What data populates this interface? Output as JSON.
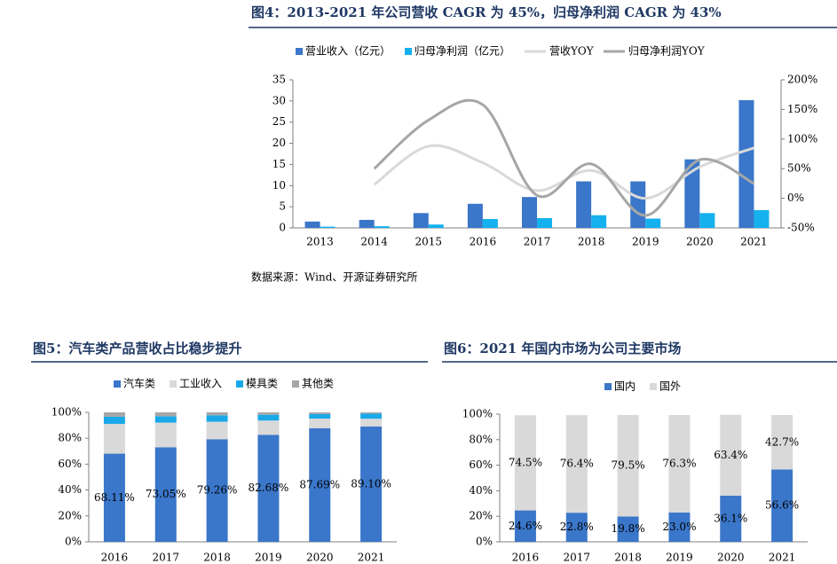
{
  "chart_data": [
    {
      "type": "bar",
      "title": "图4：2013-2021 年公司营收 CAGR 为 45%，归母净利润 CAGR 为 43%",
      "source": "数据来源：Wind、开源证券研究所",
      "categories": [
        "2013",
        "2014",
        "2015",
        "2016",
        "2017",
        "2018",
        "2019",
        "2020",
        "2021"
      ],
      "series": [
        {
          "name": "营业收入（亿元）",
          "color": "#3a76c9",
          "type": "bar",
          "values": [
            1.5,
            1.9,
            3.5,
            5.7,
            7.3,
            11,
            11,
            16.2,
            30.2
          ]
        },
        {
          "name": "归母净利润（亿元）",
          "color": "#14b1ee",
          "type": "bar",
          "values": [
            0.3,
            0.4,
            0.8,
            2.1,
            2.3,
            3.0,
            2.2,
            3.5,
            4.2
          ]
        },
        {
          "name": "营收YOY",
          "color": "#d9d9d9",
          "type": "line",
          "axis": "y2",
          "values": [
            null,
            23,
            88,
            60,
            13,
            47,
            0,
            53,
            85
          ]
        },
        {
          "name": "归母净利润YOY",
          "color": "#a6a6a6",
          "type": "line",
          "axis": "y2",
          "values": [
            null,
            50,
            132,
            158,
            5,
            58,
            -29,
            65,
            25
          ]
        }
      ],
      "ylim": [
        0,
        35
      ],
      "yticks": [
        0,
        5,
        10,
        15,
        20,
        25,
        30,
        35
      ],
      "y2lim": [
        -50,
        200
      ],
      "y2ticks": [
        {
          "value": -50,
          "label": "-50%"
        },
        {
          "value": 0,
          "label": "0%"
        },
        {
          "value": 50,
          "label": "50%"
        },
        {
          "value": 100,
          "label": "100%"
        },
        {
          "value": 150,
          "label": "150%"
        },
        {
          "value": 200,
          "label": "200%"
        }
      ],
      "grid": false,
      "legend": "top"
    },
    {
      "type": "stacked_bar",
      "title": "图5：汽车类产品营收占比稳步提升",
      "categories": [
        "2016",
        "2017",
        "2018",
        "2019",
        "2020",
        "2021"
      ],
      "series": [
        {
          "name": "汽车类",
          "color": "#3a76c9",
          "values": [
            68.11,
            73.05,
            79.26,
            82.68,
            87.69,
            89.1
          ],
          "value_labels": [
            "68.11%",
            "73.05%",
            "79.26%",
            "82.68%",
            "87.69%",
            "89.10%"
          ]
        },
        {
          "name": "工业收入",
          "color": "#d9d9d9",
          "values": [
            23,
            19,
            13.5,
            11,
            7.5,
            6
          ]
        },
        {
          "name": "模具类",
          "color": "#1aa9e8",
          "values": [
            5.5,
            5,
            5,
            4.5,
            3.5,
            4
          ]
        },
        {
          "name": "其他类",
          "color": "#a6a6a6",
          "values": [
            3.39,
            2.95,
            2.24,
            1.82,
            1.31,
            0.9
          ]
        }
      ],
      "ylim": [
        0,
        100
      ],
      "yticks": [
        {
          "value": 0,
          "label": "0%"
        },
        {
          "value": 20,
          "label": "20%"
        },
        {
          "value": 40,
          "label": "40%"
        },
        {
          "value": 60,
          "label": "60%"
        },
        {
          "value": 80,
          "label": "80%"
        },
        {
          "value": 100,
          "label": "100%"
        }
      ],
      "grid": false,
      "legend": "top"
    },
    {
      "type": "stacked_bar",
      "title": "图6：2021 年国内市场为公司主要市场",
      "categories": [
        "2016",
        "2017",
        "2018",
        "2019",
        "2020",
        "2021"
      ],
      "series": [
        {
          "name": "国内",
          "color": "#3a76c9",
          "values": [
            24.6,
            22.8,
            19.8,
            23.0,
            36.1,
            56.6
          ],
          "value_labels": [
            "24.6%",
            "22.8%",
            "19.8%",
            "23.0%",
            "36.1%",
            "56.6%"
          ]
        },
        {
          "name": "国外",
          "color": "#d9d9d9",
          "values": [
            74.5,
            76.4,
            79.5,
            76.3,
            63.4,
            42.7
          ],
          "value_labels": [
            "74.5%",
            "76.4%",
            "79.5%",
            "76.3%",
            "63.4%",
            "42.7%"
          ]
        }
      ],
      "ylim": [
        0,
        100
      ],
      "yticks": [
        {
          "value": 0,
          "label": "0%"
        },
        {
          "value": 20,
          "label": "20%"
        },
        {
          "value": 40,
          "label": "40%"
        },
        {
          "value": 60,
          "label": "60%"
        },
        {
          "value": 80,
          "label": "80%"
        },
        {
          "value": 100,
          "label": "100%"
        }
      ],
      "grid": false,
      "legend": "top"
    }
  ]
}
